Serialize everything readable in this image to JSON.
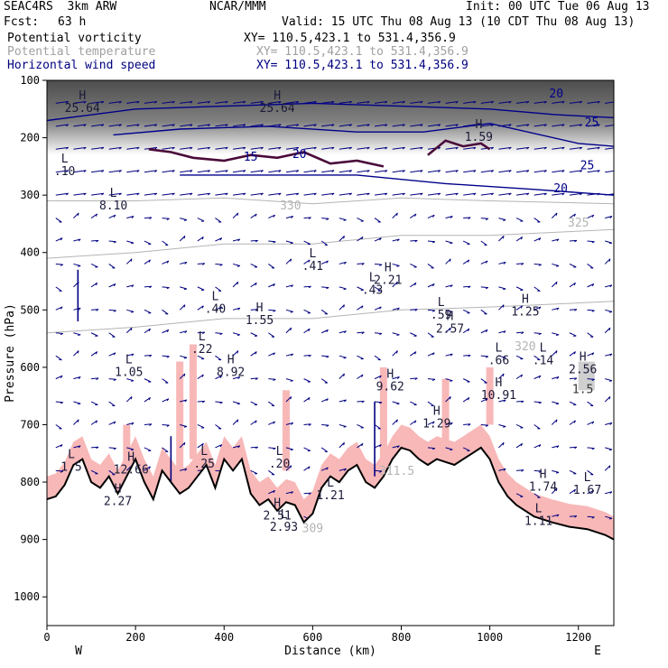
{
  "header": {
    "model": "SEAC4RS  3km ARW",
    "org": "NCAR/MMM",
    "init": "Init: 00 UTC Tue 06 Aug 13",
    "fcst_label": "Fcst:",
    "fcst_value": "63 h",
    "valid": "Valid: 15 UTC Thu 08 Aug 13 (10 CDT Thu 08 Aug 13)",
    "fields": [
      {
        "name": "Potential vorticity",
        "xy": "XY= 110.5,423.1 to 531.4,356.9"
      },
      {
        "name": "Potential temperature",
        "xy": "XY= 110.5,423.1 to 531.4,356.9"
      },
      {
        "name": "Horizontal wind speed",
        "xy": "XY= 110.5,423.1 to 531.4,356.9"
      }
    ]
  },
  "colors": {
    "pv_contour": "#4a0a3a",
    "theta_contour": "#b4b4b4",
    "wind_vectors": "#000080",
    "wind_speed_contour": "#00008b",
    "terrain": "#000000",
    "shading_pink": "#f8b8b8",
    "shading_gray": "#555555"
  },
  "chart_data": {
    "type": "cross-section",
    "xlabel": "Distance (km)",
    "ylabel": "Pressure (hPa)",
    "xlim": [
      0,
      1280
    ],
    "ylim": [
      1050,
      100
    ],
    "x_ticks": [
      0,
      200,
      400,
      600,
      800,
      1000,
      1200
    ],
    "y_ticks": [
      100,
      200,
      300,
      400,
      500,
      600,
      700,
      800,
      900,
      1000
    ],
    "x_end_labels": {
      "left": "W",
      "right": "E"
    },
    "terrain_surface": [
      [
        0,
        830
      ],
      [
        20,
        825
      ],
      [
        40,
        805
      ],
      [
        60,
        770
      ],
      [
        80,
        760
      ],
      [
        100,
        800
      ],
      [
        120,
        810
      ],
      [
        140,
        790
      ],
      [
        160,
        820
      ],
      [
        180,
        790
      ],
      [
        200,
        760
      ],
      [
        220,
        800
      ],
      [
        240,
        830
      ],
      [
        260,
        780
      ],
      [
        280,
        800
      ],
      [
        300,
        820
      ],
      [
        320,
        810
      ],
      [
        340,
        790
      ],
      [
        360,
        770
      ],
      [
        380,
        810
      ],
      [
        400,
        760
      ],
      [
        420,
        780
      ],
      [
        440,
        760
      ],
      [
        460,
        820
      ],
      [
        480,
        840
      ],
      [
        500,
        830
      ],
      [
        520,
        850
      ],
      [
        540,
        835
      ],
      [
        560,
        840
      ],
      [
        580,
        870
      ],
      [
        600,
        855
      ],
      [
        620,
        810
      ],
      [
        640,
        790
      ],
      [
        660,
        800
      ],
      [
        680,
        780
      ],
      [
        700,
        770
      ],
      [
        720,
        800
      ],
      [
        740,
        810
      ],
      [
        760,
        790
      ],
      [
        780,
        760
      ],
      [
        800,
        740
      ],
      [
        820,
        745
      ],
      [
        840,
        760
      ],
      [
        860,
        770
      ],
      [
        880,
        760
      ],
      [
        900,
        765
      ],
      [
        920,
        770
      ],
      [
        940,
        760
      ],
      [
        960,
        750
      ],
      [
        980,
        740
      ],
      [
        1000,
        760
      ],
      [
        1020,
        800
      ],
      [
        1040,
        825
      ],
      [
        1060,
        840
      ],
      [
        1080,
        850
      ],
      [
        1100,
        860
      ],
      [
        1140,
        870
      ],
      [
        1180,
        878
      ],
      [
        1220,
        882
      ],
      [
        1260,
        892
      ],
      [
        1280,
        900
      ]
    ],
    "wind_speed_contours": [
      {
        "label": "20",
        "points": [
          [
            150,
            195
          ],
          [
            300,
            185
          ],
          [
            500,
            180
          ],
          [
            700,
            190
          ],
          [
            850,
            190
          ],
          [
            1000,
            175
          ],
          [
            1200,
            210
          ],
          [
            1280,
            215
          ]
        ]
      },
      {
        "label": "25",
        "points": [
          [
            0,
            170
          ],
          [
            200,
            150
          ],
          [
            400,
            145
          ],
          [
            600,
            140
          ],
          [
            800,
            145
          ],
          [
            1000,
            150
          ],
          [
            1150,
            160
          ],
          [
            1280,
            165
          ]
        ]
      },
      {
        "label": "20",
        "points": [
          [
            300,
            265
          ],
          [
            500,
            265
          ],
          [
            700,
            265
          ],
          [
            900,
            280
          ],
          [
            1100,
            290
          ],
          [
            1280,
            300
          ]
        ]
      }
    ],
    "theta_contours": [
      {
        "label": "330",
        "points": [
          [
            0,
            310
          ],
          [
            200,
            310
          ],
          [
            400,
            305
          ],
          [
            600,
            315
          ],
          [
            800,
            305
          ],
          [
            1000,
            310
          ],
          [
            1280,
            315
          ]
        ]
      },
      {
        "label": "325",
        "points": [
          [
            0,
            410
          ],
          [
            200,
            400
          ],
          [
            400,
            385
          ],
          [
            600,
            385
          ],
          [
            800,
            370
          ],
          [
            1000,
            370
          ],
          [
            1280,
            360
          ]
        ]
      },
      {
        "label": "320",
        "points": [
          [
            0,
            540
          ],
          [
            200,
            530
          ],
          [
            400,
            515
          ],
          [
            600,
            515
          ],
          [
            800,
            500
          ],
          [
            1000,
            495
          ],
          [
            1280,
            485
          ]
        ]
      }
    ],
    "pv_contours": [
      {
        "points": [
          [
            230,
            220
          ],
          [
            280,
            225
          ],
          [
            330,
            235
          ],
          [
            400,
            240
          ],
          [
            460,
            230
          ],
          [
            520,
            235
          ],
          [
            580,
            225
          ],
          [
            640,
            245
          ],
          [
            700,
            240
          ],
          [
            760,
            250
          ]
        ]
      },
      {
        "points": [
          [
            860,
            230
          ],
          [
            900,
            205
          ],
          [
            940,
            215
          ],
          [
            980,
            210
          ],
          [
            1000,
            220
          ]
        ]
      }
    ],
    "extrema_labels": [
      {
        "kind": "L",
        "value": ".10",
        "x": 40,
        "y": 265
      },
      {
        "kind": "L",
        "value": "8.10",
        "x": 150,
        "y": 325
      },
      {
        "kind": "L",
        "value": ".41",
        "x": 600,
        "y": 430
      },
      {
        "kind": "L",
        "value": ".43",
        "x": 735,
        "y": 472
      },
      {
        "kind": "H",
        "value": "2.21",
        "x": 770,
        "y": 455
      },
      {
        "kind": "L",
        "value": ".40",
        "x": 380,
        "y": 505
      },
      {
        "kind": "H",
        "value": "1.55",
        "x": 480,
        "y": 525
      },
      {
        "kind": "L",
        "value": ".59",
        "x": 890,
        "y": 515
      },
      {
        "kind": "H",
        "value": "2.57",
        "x": 910,
        "y": 540
      },
      {
        "kind": "H",
        "value": "1.25",
        "x": 1080,
        "y": 510
      },
      {
        "kind": "L",
        "value": ".22",
        "x": 350,
        "y": 575
      },
      {
        "kind": "L",
        "value": "1.05",
        "x": 185,
        "y": 615
      },
      {
        "kind": "H",
        "value": "8.92",
        "x": 415,
        "y": 615
      },
      {
        "kind": "L",
        "value": ".66",
        "x": 1020,
        "y": 595
      },
      {
        "kind": "L",
        "value": ".14",
        "x": 1120,
        "y": 595
      },
      {
        "kind": "H",
        "value": "2.56",
        "x": 1210,
        "y": 610
      },
      {
        "kind": "H",
        "value": "9.62",
        "x": 775,
        "y": 640
      },
      {
        "kind": "H",
        "value": "10.91",
        "x": 1020,
        "y": 655
      },
      {
        "kind": "H",
        "value": "1.29",
        "x": 880,
        "y": 705
      },
      {
        "kind": "L",
        "value": ".25",
        "x": 355,
        "y": 775
      },
      {
        "kind": "L",
        "value": ".20",
        "x": 525,
        "y": 775
      },
      {
        "kind": "L",
        "value": "1.5",
        "x": 55,
        "y": 780
      },
      {
        "kind": "H",
        "value": "12.66",
        "x": 190,
        "y": 785
      },
      {
        "kind": "L",
        "value": "1.21",
        "x": 640,
        "y": 830
      },
      {
        "kind": "H",
        "value": "2.27",
        "x": 160,
        "y": 840
      },
      {
        "kind": "H",
        "value": "1.74",
        "x": 1120,
        "y": 815
      },
      {
        "kind": "L",
        "value": "1.67",
        "x": 1220,
        "y": 820
      },
      {
        "kind": "H",
        "value": "2.51",
        "x": 520,
        "y": 865
      },
      {
        "kind": "L",
        "value": "2.93",
        "x": 535,
        "y": 885
      },
      {
        "kind": "L",
        "value": "1.11",
        "x": 1110,
        "y": 875
      },
      {
        "kind": "H",
        "value": "1.59",
        "x": 975,
        "y": 205
      },
      {
        "kind": "H",
        "value": "25.64",
        "x": 80,
        "y": 155
      },
      {
        "kind": "H",
        "value": "25.64",
        "x": 520,
        "y": 155
      }
    ],
    "contour_value_labels": [
      {
        "text": "20",
        "x": 1150,
        "y": 130,
        "family": "wind"
      },
      {
        "text": "25",
        "x": 1230,
        "y": 180,
        "family": "wind"
      },
      {
        "text": "25",
        "x": 1220,
        "y": 255,
        "family": "wind"
      },
      {
        "text": "20",
        "x": 1160,
        "y": 295,
        "family": "wind"
      },
      {
        "text": "20",
        "x": 570,
        "y": 235,
        "family": "wind"
      },
      {
        "text": "15",
        "x": 460,
        "y": 240,
        "family": "wind"
      },
      {
        "text": "330",
        "x": 550,
        "y": 325,
        "family": "theta"
      },
      {
        "text": "325",
        "x": 1200,
        "y": 355,
        "family": "theta"
      },
      {
        "text": "320",
        "x": 1080,
        "y": 570,
        "family": "theta"
      },
      {
        "text": "311.5",
        "x": 790,
        "y": 787,
        "family": "theta"
      },
      {
        "text": "309",
        "x": 600,
        "y": 887,
        "family": "theta"
      },
      {
        "text": "1.5",
        "x": 1210,
        "y": 645,
        "family": "pv"
      }
    ],
    "wind_vector_field": "dense grid of small arrows, mostly westerly (pointing right) in the upper troposphere, weaker and downward-pointing near the surface"
  }
}
